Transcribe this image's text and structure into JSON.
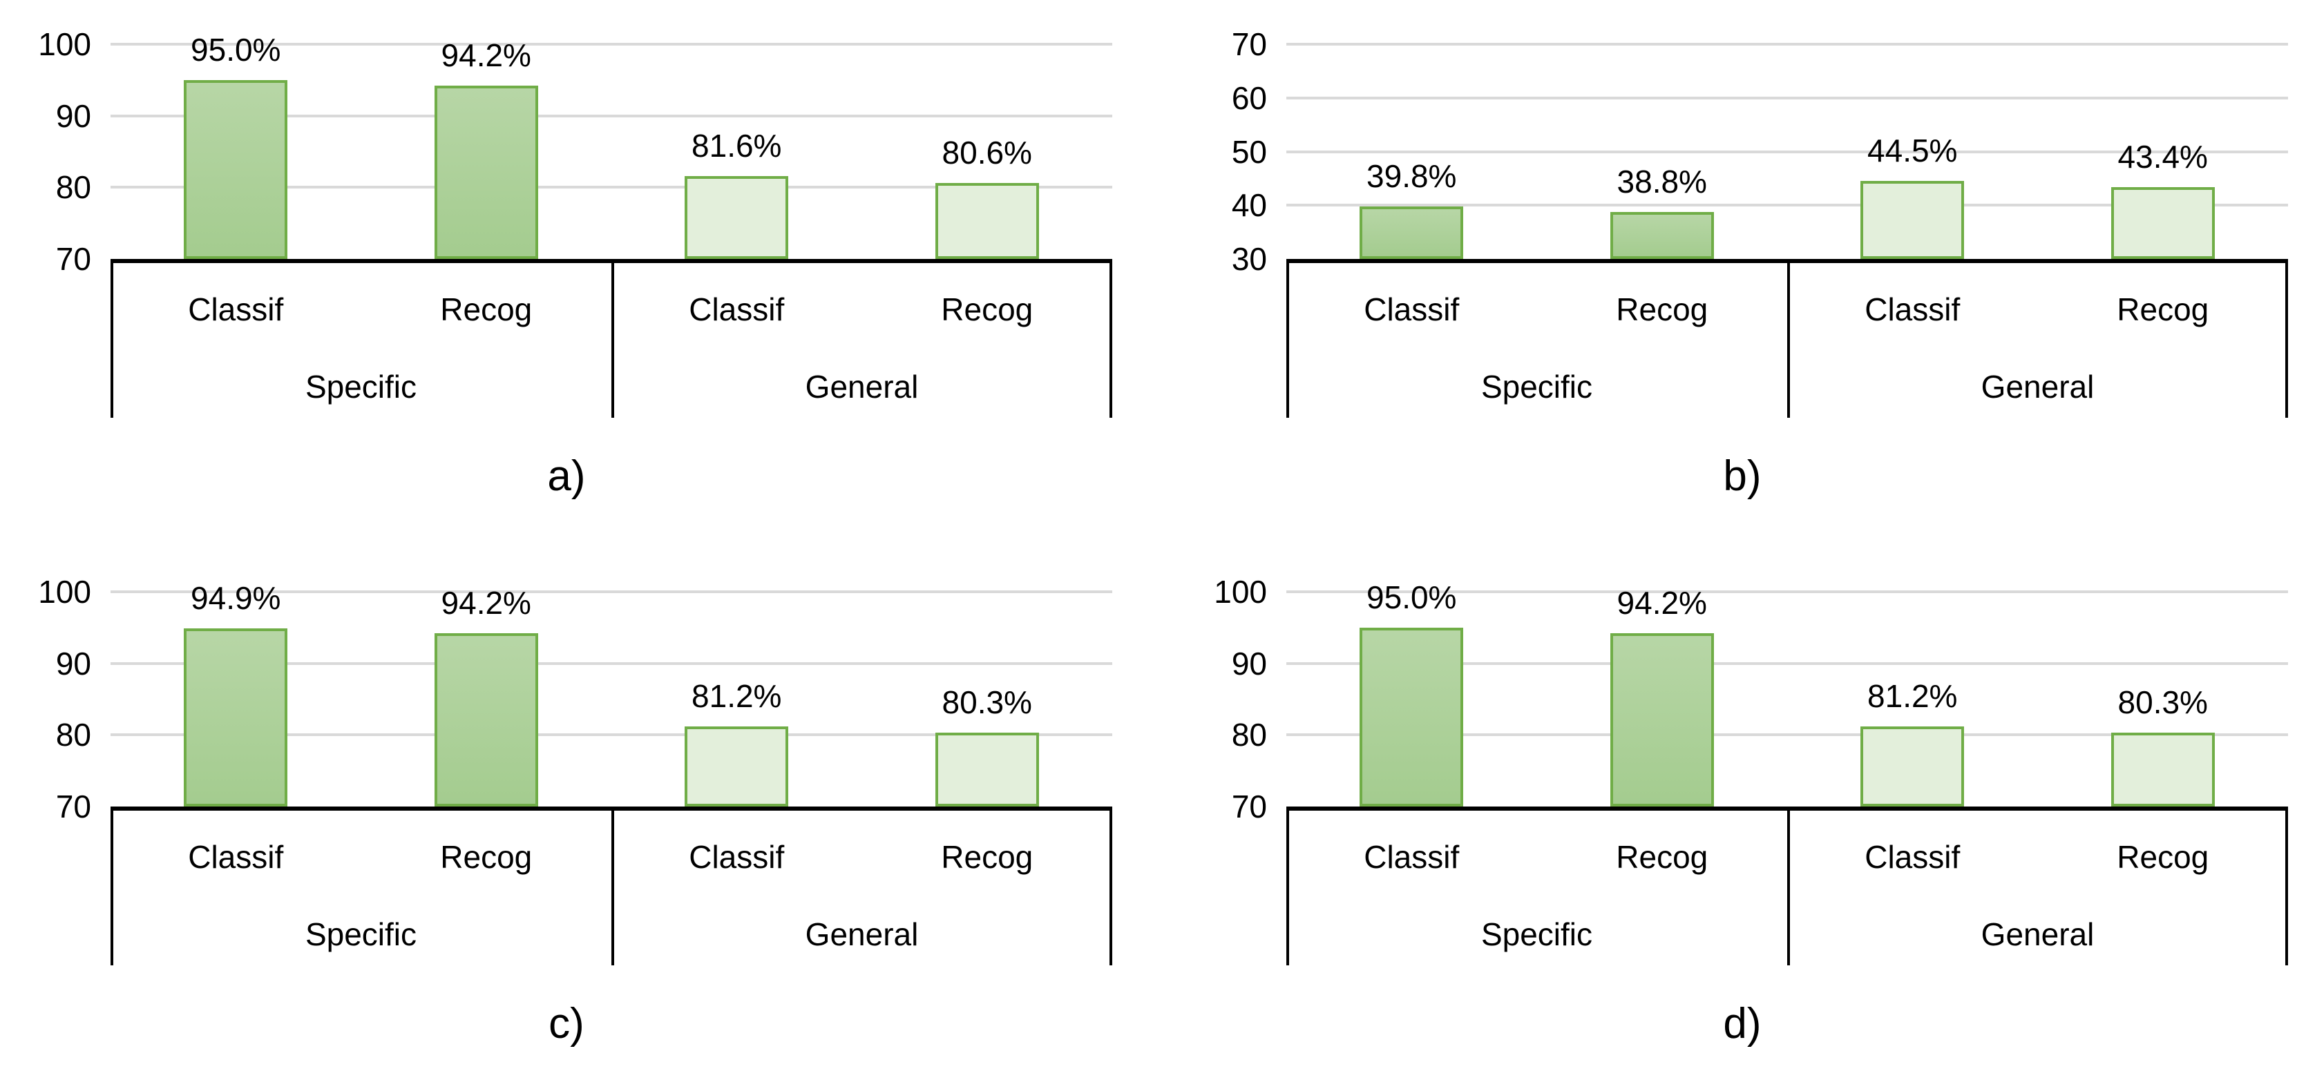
{
  "figure": {
    "background": "#ffffff",
    "layout": "2x2-grid-of-bar-charts"
  },
  "colors": {
    "specific_fill_top": "#b7d6a6",
    "specific_fill_bottom": "#a4cc8f",
    "general_fill": "#e3efdb",
    "bar_border": "#70ad47",
    "gridline": "#d9d9d9",
    "axis_line": "#000000",
    "text": "#000000"
  },
  "chart_data": [
    {
      "id": "a",
      "type": "bar",
      "caption": "a)",
      "ylim": [
        70,
        100
      ],
      "y_ticks": [
        100,
        90,
        80,
        70
      ],
      "grid": "on",
      "legend": "none",
      "categories": [
        "Specific / Classif",
        "Specific / Recog",
        "General / Classif",
        "General / Recog"
      ],
      "values": [
        95.0,
        94.2,
        81.6,
        80.6
      ],
      "groups": [
        {
          "label": "Specific",
          "style": "specific",
          "items": [
            {
              "label": "Classif",
              "value": 95.0,
              "display": "95.0%"
            },
            {
              "label": "Recog",
              "value": 94.2,
              "display": "94.2%"
            }
          ]
        },
        {
          "label": "General",
          "style": "general",
          "items": [
            {
              "label": "Classif",
              "value": 81.6,
              "display": "81.6%"
            },
            {
              "label": "Recog",
              "value": 80.6,
              "display": "80.6%"
            }
          ]
        }
      ]
    },
    {
      "id": "b",
      "type": "bar",
      "caption": "b)",
      "ylim": [
        30,
        70
      ],
      "y_ticks": [
        70,
        60,
        50,
        40,
        30
      ],
      "grid": "on",
      "legend": "none",
      "categories": [
        "Specific / Classif",
        "Specific / Recog",
        "General / Classif",
        "General / Recog"
      ],
      "values": [
        39.8,
        38.8,
        44.5,
        43.4
      ],
      "groups": [
        {
          "label": "Specific",
          "style": "specific",
          "items": [
            {
              "label": "Classif",
              "value": 39.8,
              "display": "39.8%"
            },
            {
              "label": "Recog",
              "value": 38.8,
              "display": "38.8%"
            }
          ]
        },
        {
          "label": "General",
          "style": "general",
          "items": [
            {
              "label": "Classif",
              "value": 44.5,
              "display": "44.5%"
            },
            {
              "label": "Recog",
              "value": 43.4,
              "display": "43.4%"
            }
          ]
        }
      ]
    },
    {
      "id": "c",
      "type": "bar",
      "caption": "c)",
      "ylim": [
        70,
        100
      ],
      "y_ticks": [
        100,
        90,
        80,
        70
      ],
      "grid": "on",
      "legend": "none",
      "categories": [
        "Specific / Classif",
        "Specific / Recog",
        "General / Classif",
        "General / Recog"
      ],
      "values": [
        94.9,
        94.2,
        81.2,
        80.3
      ],
      "groups": [
        {
          "label": "Specific",
          "style": "specific",
          "items": [
            {
              "label": "Classif",
              "value": 94.9,
              "display": "94.9%"
            },
            {
              "label": "Recog",
              "value": 94.2,
              "display": "94.2%"
            }
          ]
        },
        {
          "label": "General",
          "style": "general",
          "items": [
            {
              "label": "Classif",
              "value": 81.2,
              "display": "81.2%"
            },
            {
              "label": "Recog",
              "value": 80.3,
              "display": "80.3%"
            }
          ]
        }
      ]
    },
    {
      "id": "d",
      "type": "bar",
      "caption": "d)",
      "ylim": [
        70,
        100
      ],
      "y_ticks": [
        100,
        90,
        80,
        70
      ],
      "grid": "on",
      "legend": "none",
      "categories": [
        "Specific / Classif",
        "Specific / Recog",
        "General / Classif",
        "General / Recog"
      ],
      "values": [
        95.0,
        94.2,
        81.2,
        80.3
      ],
      "groups": [
        {
          "label": "Specific",
          "style": "specific",
          "items": [
            {
              "label": "Classif",
              "value": 95.0,
              "display": "95.0%"
            },
            {
              "label": "Recog",
              "value": 94.2,
              "display": "94.2%"
            }
          ]
        },
        {
          "label": "General",
          "style": "general",
          "items": [
            {
              "label": "Classif",
              "value": 81.2,
              "display": "81.2%"
            },
            {
              "label": "Recog",
              "value": 80.3,
              "display": "80.3%"
            }
          ]
        }
      ]
    }
  ]
}
